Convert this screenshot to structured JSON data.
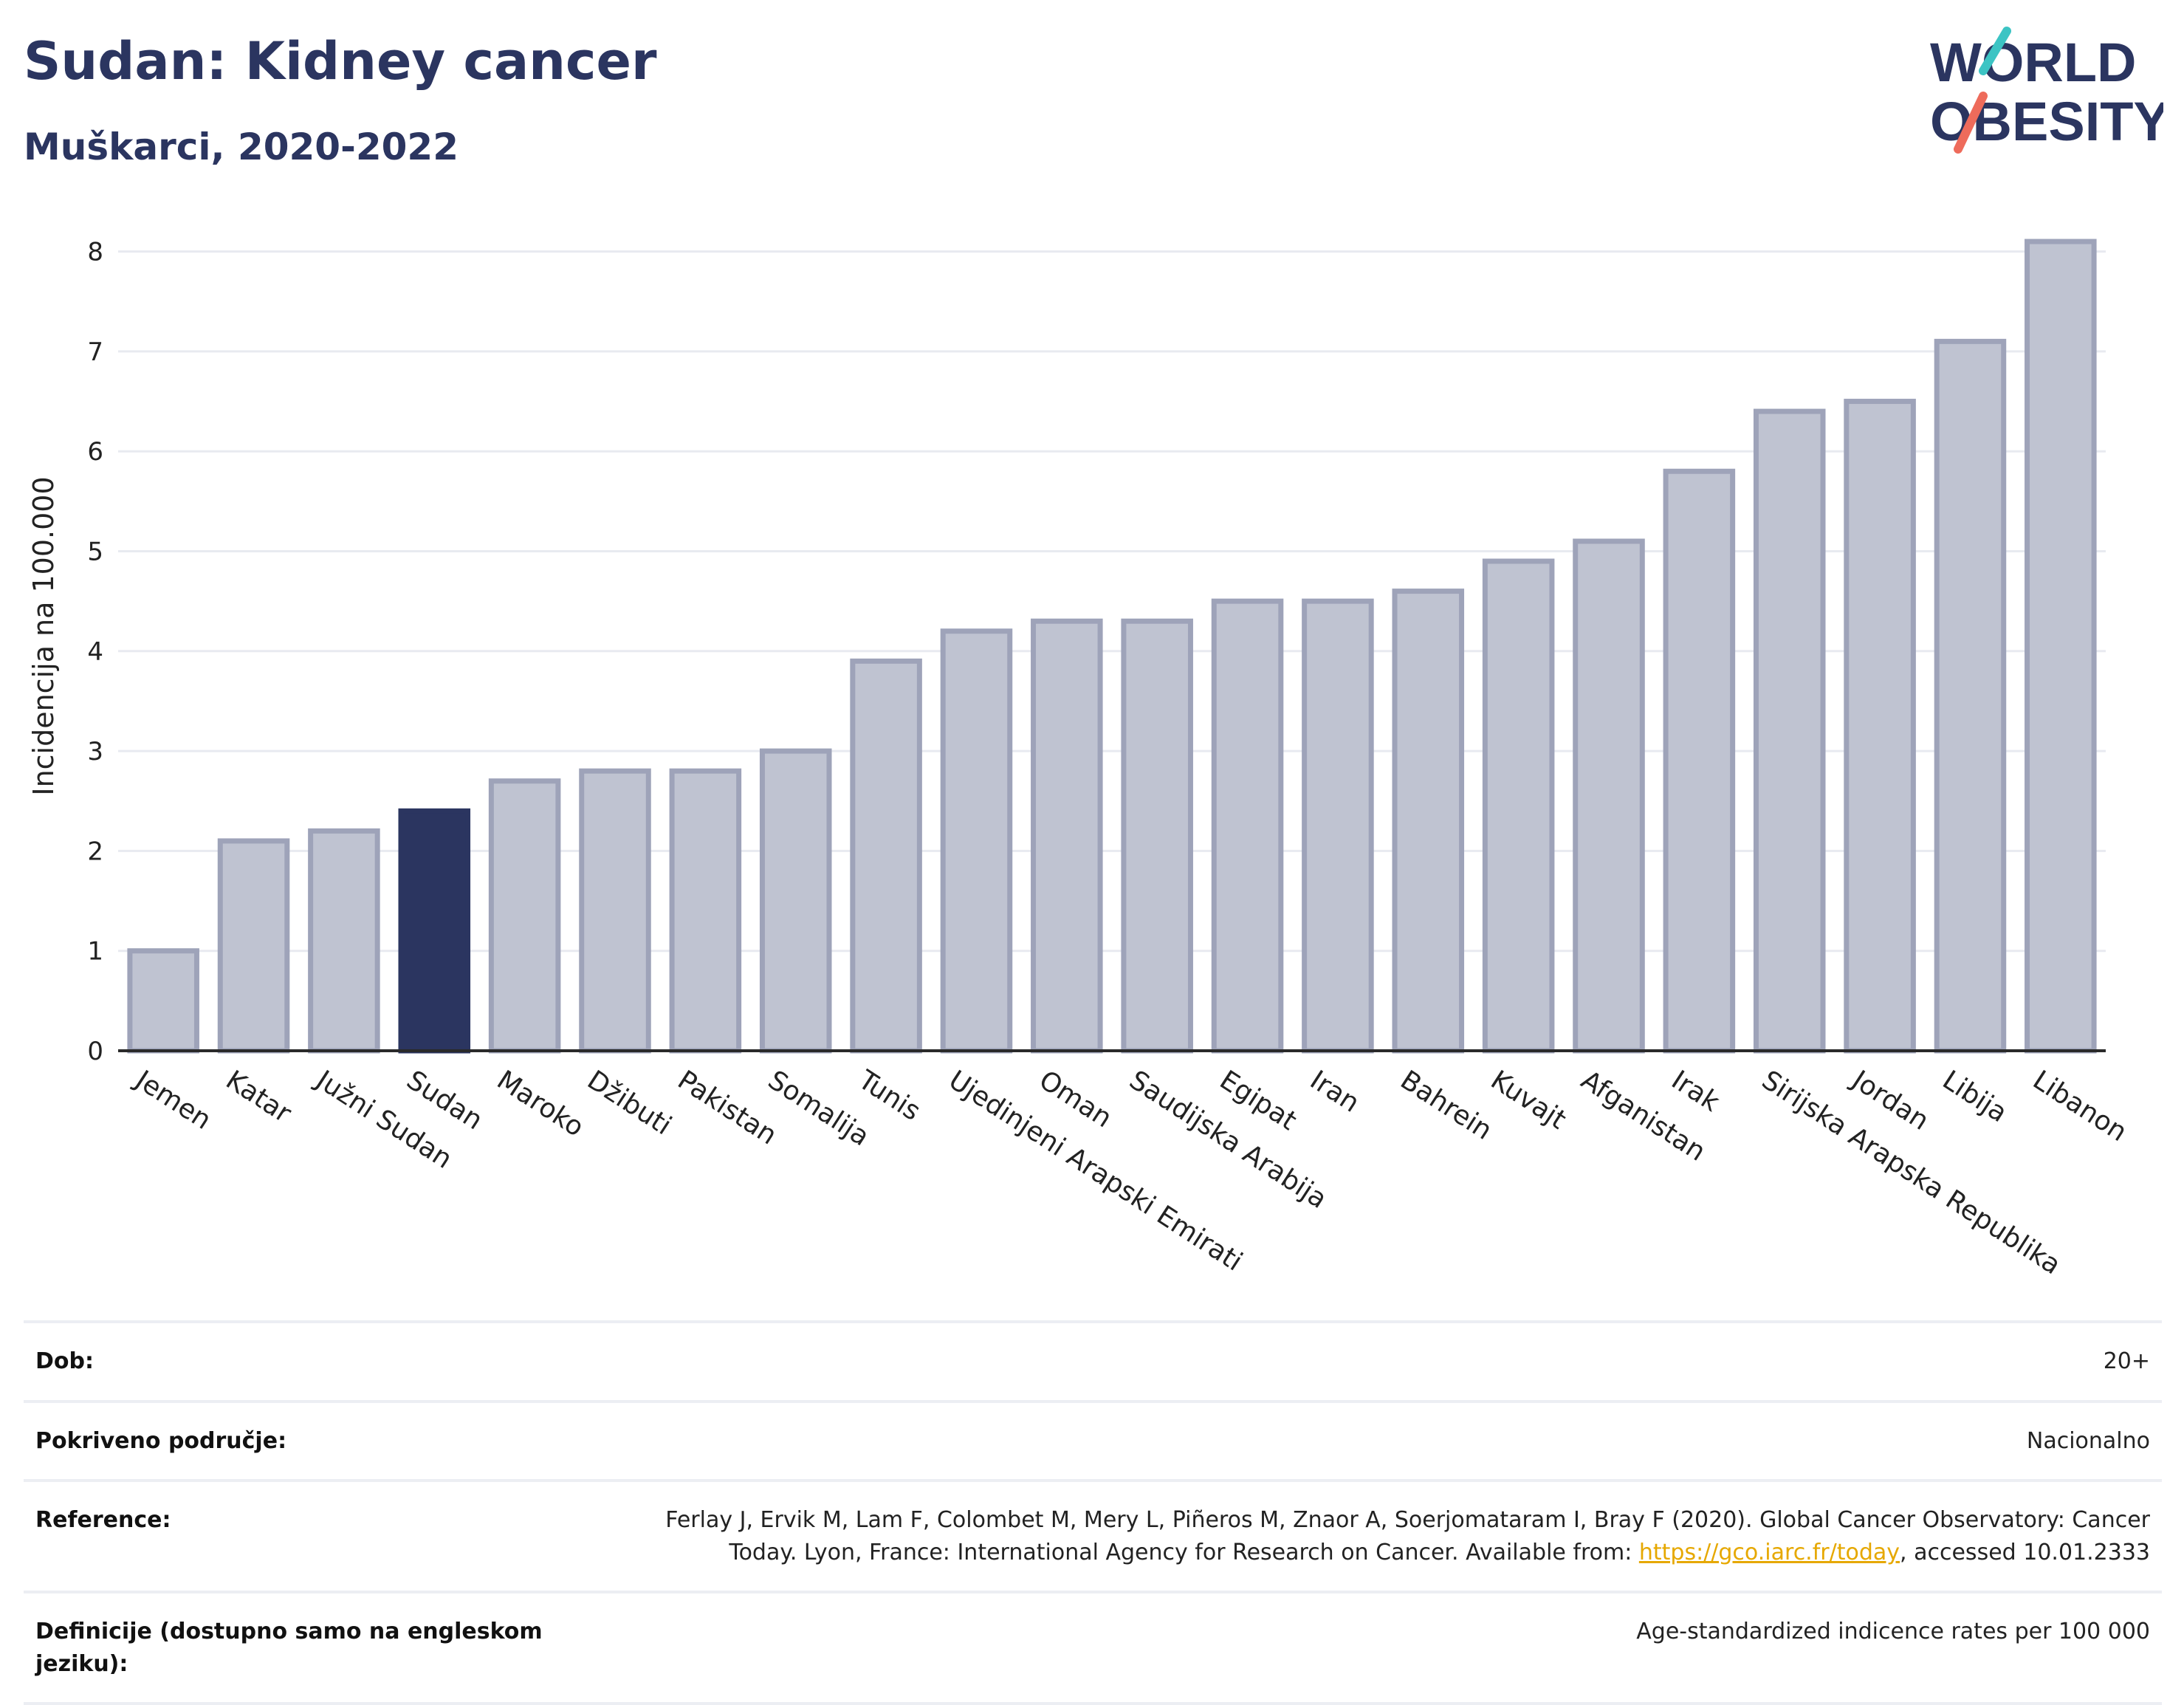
{
  "header": {
    "title": "Sudan: Kidney cancer",
    "subtitle": "Muškarci, 2020-2022",
    "logo_line1": "WORLD",
    "logo_line2": "OBESITY"
  },
  "colors": {
    "bar": "#bfc3d1",
    "bar_stroke": "#9ea3b9",
    "highlight": "#2b3560",
    "title": "#2b3560",
    "logo_teal": "#3cc4c4",
    "logo_coral": "#ee6b5b"
  },
  "chart_data": {
    "type": "bar",
    "ylabel": "Incidencija na 100.000",
    "ylim": [
      0,
      8.3
    ],
    "yticks": [
      0,
      1,
      2,
      3,
      4,
      5,
      6,
      7,
      8
    ],
    "grid": true,
    "highlight": "Sudan",
    "categories": [
      "Jemen",
      "Katar",
      "Južni Sudan",
      "Sudan",
      "Maroko",
      "Džibuti",
      "Pakistan",
      "Somalija",
      "Tunis",
      "Ujedinjeni Arapski Emirati",
      "Oman",
      "Saudijska Arabija",
      "Egipat",
      "Iran",
      "Bahrein",
      "Kuvajt",
      "Afganistan",
      "Irak",
      "Sirijska Arapska Republika",
      "Jordan",
      "Libija",
      "Libanon"
    ],
    "values": [
      1.0,
      2.1,
      2.2,
      2.4,
      2.7,
      2.8,
      2.8,
      3.0,
      3.9,
      4.2,
      4.3,
      4.3,
      4.5,
      4.5,
      4.6,
      4.9,
      5.1,
      5.8,
      6.4,
      6.5,
      7.1,
      8.1
    ]
  },
  "meta": {
    "age_label": "Dob:",
    "age_value": "20+",
    "coverage_label": "Pokriveno područje:",
    "coverage_value": "Nacionalno",
    "reference_label": "Reference:",
    "reference_line1": "Ferlay J, Ervik M, Lam F, Colombet M, Mery L, Piñeros M, Znaor A, Soerjomataram I, Bray F (2020). Global Cancer Observatory: Cancer",
    "reference_line2_pre": "Today. Lyon, France: International Agency for Research on Cancer. Available from: ",
    "reference_link": "https://gco.iarc.fr/today",
    "reference_line2_post": ", accessed 10.01.2333",
    "definitions_label": "Definicije (dostupno samo na engleskom jeziku):",
    "definitions_value": "Age-standardized indicence rates per 100 000"
  }
}
